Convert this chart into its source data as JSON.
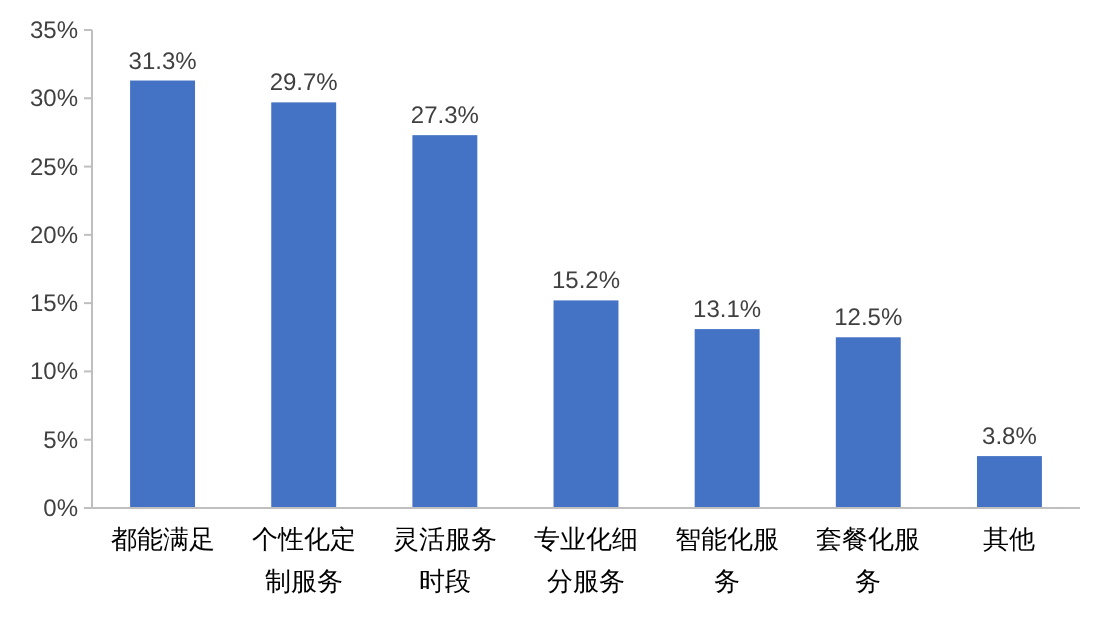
{
  "chart_data": {
    "type": "bar",
    "categories": [
      "都能满足",
      "个性化定制服务",
      "灵活服务时段",
      "专业化细分服务",
      "智能化服务",
      "套餐化服务",
      "其他"
    ],
    "values": [
      31.3,
      29.7,
      27.3,
      15.2,
      13.1,
      12.5,
      3.8
    ],
    "value_labels": [
      "31.3%",
      "29.7%",
      "27.3%",
      "15.2%",
      "13.1%",
      "12.5%",
      "3.8%"
    ],
    "color": "#4472c4",
    "ylim": [
      0,
      35
    ],
    "yticks": [
      {
        "value": 0,
        "label": "0%"
      },
      {
        "value": 5,
        "label": "5%"
      },
      {
        "value": 10,
        "label": "10%"
      },
      {
        "value": 15,
        "label": "15%"
      },
      {
        "value": 20,
        "label": "20%"
      },
      {
        "value": 25,
        "label": "25%"
      },
      {
        "value": 30,
        "label": "30%"
      },
      {
        "value": 35,
        "label": "35%"
      }
    ],
    "grid": false
  }
}
